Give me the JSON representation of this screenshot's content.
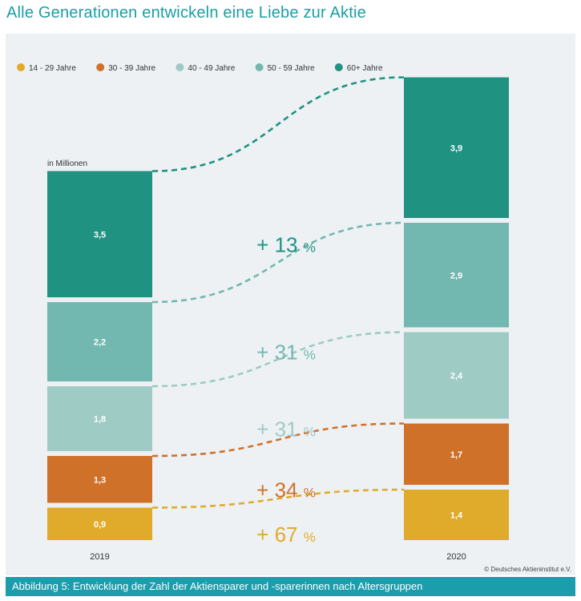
{
  "title": "Alle Generationen entwickeln eine Liebe zur Aktie",
  "caption": "Abbildung 5:  Entwicklung der Zahl der Aktiensparer und -sparerinnen nach Altersgruppen",
  "credit": "© Deutsches Aktieninstitut e.V.",
  "colors": {
    "title": "#1a9fa3",
    "panel_bg": "#edf1f4",
    "caption_bg": "#1c9dab",
    "age_14_29": "#e0ab2a",
    "age_30_39": "#d0712a",
    "age_40_49": "#9ecbc4",
    "age_50_59": "#73b8b0",
    "age_60_plus": "#1f9282"
  },
  "chart_data": {
    "type": "bar",
    "stacked": true,
    "unit_label": "in Millionen",
    "categories": [
      "2019",
      "2020"
    ],
    "series": [
      {
        "name": "14 - 29 Jahre",
        "color": "#e0ab2a",
        "values": [
          0.9,
          1.4
        ],
        "labels": [
          "0,9",
          "1,4"
        ],
        "change": "+ 67 %"
      },
      {
        "name": "30 - 39 Jahre",
        "color": "#d0712a",
        "values": [
          1.3,
          1.7
        ],
        "labels": [
          "1,3",
          "1,7"
        ],
        "change": "+ 34 %"
      },
      {
        "name": "40 - 49 Jahre",
        "color": "#9ecbc4",
        "values": [
          1.8,
          2.4
        ],
        "labels": [
          "1,8",
          "2,4"
        ],
        "change": "+ 31 %"
      },
      {
        "name": "50 - 59 Jahre",
        "color": "#73b8b0",
        "values": [
          2.2,
          2.9
        ],
        "labels": [
          "2,2",
          "2,9"
        ],
        "change": "+ 31 %"
      },
      {
        "name": "60+ Jahre",
        "color": "#1f9282",
        "values": [
          3.5,
          3.9
        ],
        "labels": [
          "3,5",
          "3,9"
        ],
        "change": "+ 13 %"
      }
    ],
    "legend_position": "top-left"
  }
}
